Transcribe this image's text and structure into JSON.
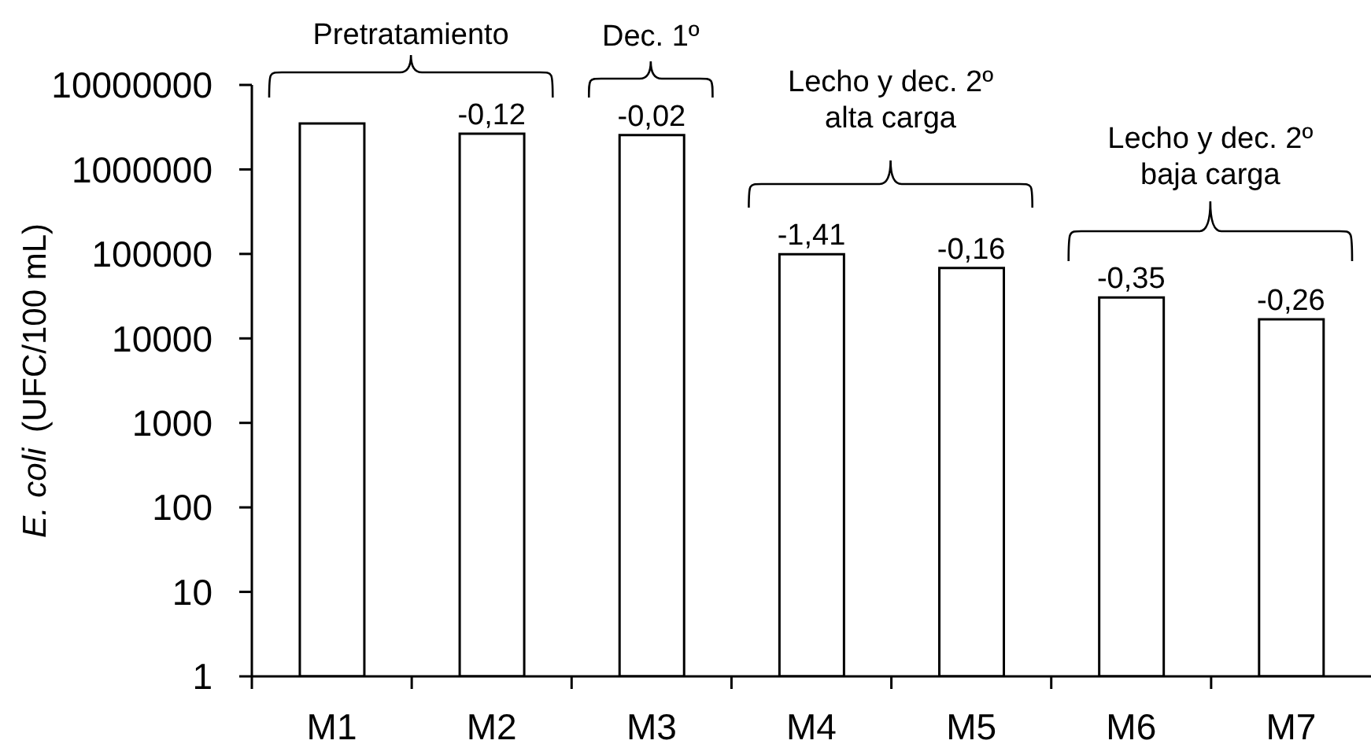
{
  "chart_data": {
    "type": "bar",
    "ylabel": "E. coli (UFC/100 mL)",
    "categories": [
      "M1",
      "M2",
      "M3",
      "M4",
      "M5",
      "M6",
      "M7"
    ],
    "values": [
      3500000,
      2650000,
      2550000,
      99000,
      68000,
      30500,
      16800
    ],
    "color": "#ffffff",
    "log": true,
    "ylim": [
      1,
      10000000
    ],
    "yticks": [
      1,
      10,
      100,
      1000,
      10000,
      100000,
      1000000,
      10000000
    ],
    "annotations": [
      "Pretratamiento",
      "Dec. 1º",
      "Lecho y dec. 2º\nalta carga",
      "Lecho y dec. 2º\nbaja carga",
      {
        "text": "-0,12",
        "x": "M2",
        "y": 2650000
      },
      {
        "text": "-0,02",
        "x": "M3",
        "y": 2550000
      },
      {
        "text": "-1,41",
        "x": "M4",
        "y": 99000
      },
      {
        "text": "-0,16",
        "x": "M5",
        "y": 68000
      },
      {
        "text": "-0,35",
        "x": "M6",
        "y": 30500
      },
      {
        "text": "-0,26",
        "x": "M7",
        "y": 16800
      }
    ]
  }
}
